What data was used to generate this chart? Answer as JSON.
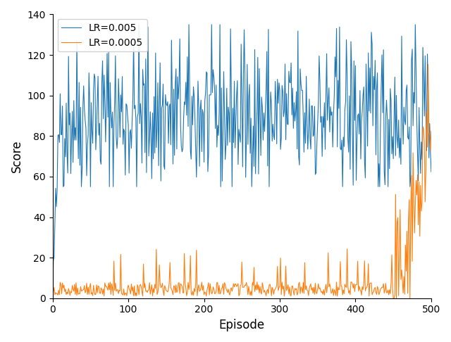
{
  "blue_color": "#1f77b4",
  "orange_color": "#ff7f0e",
  "blue_label": "LR=0.005",
  "orange_label": "LR=0.0005",
  "xlabel": "Episode",
  "ylabel": "Score",
  "xlim": [
    0,
    500
  ],
  "ylim": [
    0,
    140
  ],
  "yticks": [
    0,
    20,
    40,
    60,
    80,
    100,
    120,
    140
  ],
  "xticks": [
    0,
    100,
    200,
    300,
    400,
    500
  ],
  "figsize": [
    6.4,
    4.86
  ],
  "dpi": 100,
  "legend_loc": "upper left",
  "linewidth": 0.8,
  "n_episodes": 501,
  "seed": 42,
  "blue_base": 90,
  "blue_std": 20,
  "blue_min_start": 55,
  "blue_max": 135,
  "orange_low_max": 8,
  "orange_spike_prob": 0.04,
  "orange_spike_min": 15,
  "orange_spike_max": 25,
  "orange_rise_start": 450,
  "orange_rise_scale": 80,
  "orange_rise_std": 18
}
